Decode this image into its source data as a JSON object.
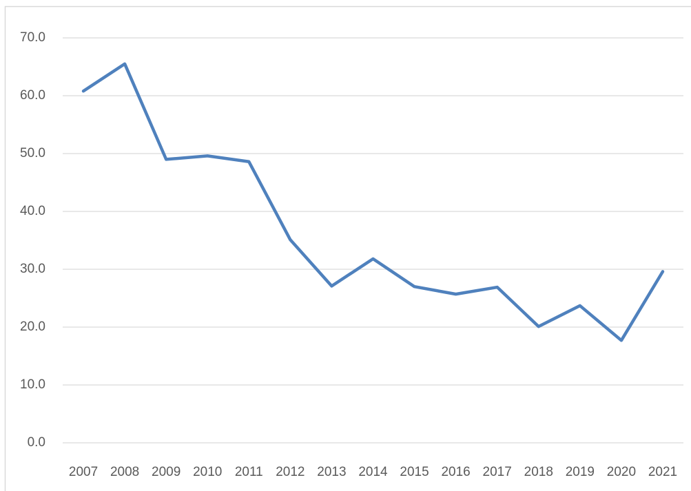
{
  "chart_data": {
    "type": "line",
    "categories": [
      "2007",
      "2008",
      "2009",
      "2010",
      "2011",
      "2012",
      "2013",
      "2014",
      "2015",
      "2016",
      "2017",
      "2018",
      "2019",
      "2020",
      "2021"
    ],
    "series": [
      {
        "color": "#4f81bd",
        "values": [
          60.8,
          65.5,
          49.0,
          49.6,
          48.6,
          35.1,
          27.1,
          31.8,
          27.0,
          25.7,
          26.9,
          20.1,
          23.7,
          17.7,
          29.6
        ]
      }
    ],
    "ylim": [
      0,
      70
    ],
    "yticks": [
      {
        "value": 0,
        "label": "0.0"
      },
      {
        "value": 10,
        "label": "10.0"
      },
      {
        "value": 20,
        "label": "20.0"
      },
      {
        "value": 30,
        "label": "30.0"
      },
      {
        "value": 40,
        "label": "40.0"
      },
      {
        "value": 50,
        "label": "50.0"
      },
      {
        "value": 60,
        "label": "60.0"
      },
      {
        "value": 70,
        "label": "70.0"
      }
    ],
    "grid": true
  }
}
